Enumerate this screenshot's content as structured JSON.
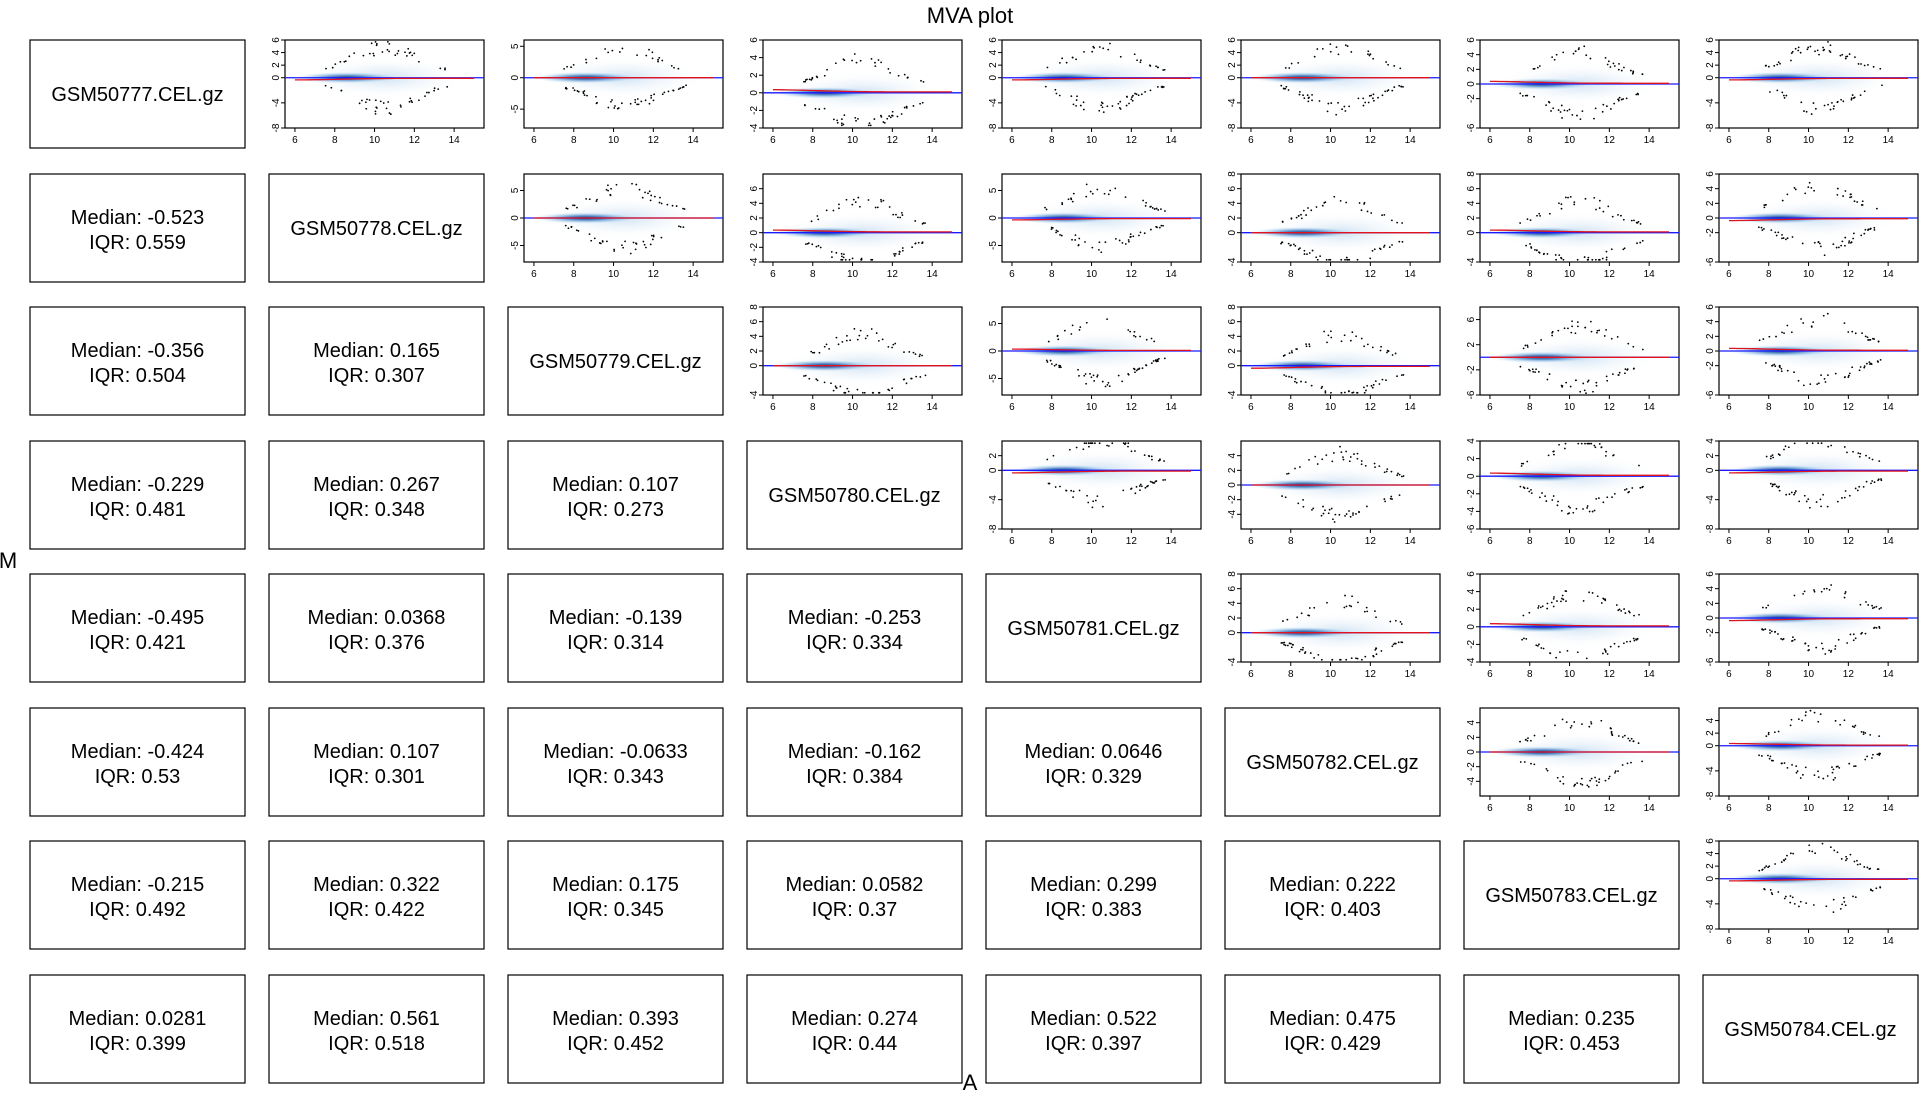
{
  "chart_data": {
    "type": "scatter",
    "title": "MVA plot",
    "xlabel": "A",
    "ylabel": "M",
    "samples": [
      "GSM50777.CEL.gz",
      "GSM50778.CEL.gz",
      "GSM50779.CEL.gz",
      "GSM50780.CEL.gz",
      "GSM50781.CEL.gz",
      "GSM50782.CEL.gz",
      "GSM50783.CEL.gz",
      "GSM50784.CEL.gz"
    ],
    "stats": [
      [
        null,
        null,
        null,
        null,
        null,
        null,
        null,
        null
      ],
      [
        {
          "median": "Median: -0.523",
          "iqr": "IQR: 0.559"
        },
        null,
        null,
        null,
        null,
        null,
        null,
        null
      ],
      [
        {
          "median": "Median: -0.356",
          "iqr": "IQR: 0.504"
        },
        {
          "median": "Median: 0.165",
          "iqr": "IQR: 0.307"
        },
        null,
        null,
        null,
        null,
        null,
        null
      ],
      [
        {
          "median": "Median: -0.229",
          "iqr": "IQR: 0.481"
        },
        {
          "median": "Median: 0.267",
          "iqr": "IQR: 0.348"
        },
        {
          "median": "Median: 0.107",
          "iqr": "IQR: 0.273"
        },
        null,
        null,
        null,
        null,
        null
      ],
      [
        {
          "median": "Median: -0.495",
          "iqr": "IQR: 0.421"
        },
        {
          "median": "Median: 0.0368",
          "iqr": "IQR: 0.376"
        },
        {
          "median": "Median: -0.139",
          "iqr": "IQR: 0.314"
        },
        {
          "median": "Median: -0.253",
          "iqr": "IQR: 0.334"
        },
        null,
        null,
        null,
        null
      ],
      [
        {
          "median": "Median: -0.424",
          "iqr": "IQR: 0.53"
        },
        {
          "median": "Median: 0.107",
          "iqr": "IQR: 0.301"
        },
        {
          "median": "Median: -0.0633",
          "iqr": "IQR: 0.343"
        },
        {
          "median": "Median: -0.162",
          "iqr": "IQR: 0.384"
        },
        {
          "median": "Median: 0.0646",
          "iqr": "IQR: 0.329"
        },
        null,
        null,
        null
      ],
      [
        {
          "median": "Median: -0.215",
          "iqr": "IQR: 0.492"
        },
        {
          "median": "Median: 0.322",
          "iqr": "IQR: 0.422"
        },
        {
          "median": "Median: 0.175",
          "iqr": "IQR: 0.345"
        },
        {
          "median": "Median: 0.0582",
          "iqr": "IQR: 0.37"
        },
        {
          "median": "Median: 0.299",
          "iqr": "IQR: 0.383"
        },
        {
          "median": "Median: 0.222",
          "iqr": "IQR: 0.403"
        },
        null,
        null
      ],
      [
        {
          "median": "Median: 0.0281",
          "iqr": "IQR: 0.399"
        },
        {
          "median": "Median: 0.561",
          "iqr": "IQR: 0.518"
        },
        {
          "median": "Median: 0.393",
          "iqr": "IQR: 0.452"
        },
        {
          "median": "Median: 0.274",
          "iqr": "IQR: 0.44"
        },
        {
          "median": "Median: 0.522",
          "iqr": "IQR: 0.397"
        },
        {
          "median": "Median: 0.475",
          "iqr": "IQR: 0.429"
        },
        {
          "median": "Median: 0.235",
          "iqr": "IQR: 0.453"
        },
        null
      ]
    ],
    "x_ticks": [
      "6",
      "8",
      "10",
      "12",
      "14"
    ],
    "xlim": [
      5.5,
      15.5
    ],
    "panels": [
      {
        "row": 0,
        "col": 1,
        "ylim": [
          -8,
          6
        ],
        "y_ticks": [
          "-8",
          "-4",
          "0",
          "2",
          "4",
          "6"
        ]
      },
      {
        "row": 0,
        "col": 2,
        "ylim": [
          -8,
          6
        ],
        "y_ticks": [
          "-5",
          "0",
          "5"
        ]
      },
      {
        "row": 0,
        "col": 3,
        "ylim": [
          -4,
          6
        ],
        "y_ticks": [
          "-4",
          "-2",
          "0",
          "2",
          "4",
          "6"
        ]
      },
      {
        "row": 0,
        "col": 4,
        "ylim": [
          -8,
          6
        ],
        "y_ticks": [
          "-8",
          "-4",
          "0",
          "2",
          "4",
          "6"
        ]
      },
      {
        "row": 0,
        "col": 5,
        "ylim": [
          -8,
          6
        ],
        "y_ticks": [
          "-8",
          "-4",
          "0",
          "2",
          "4",
          "6"
        ]
      },
      {
        "row": 0,
        "col": 6,
        "ylim": [
          -6,
          6
        ],
        "y_ticks": [
          "-6",
          "-2",
          "0",
          "2",
          "4",
          "6"
        ]
      },
      {
        "row": 0,
        "col": 7,
        "ylim": [
          -8,
          6
        ],
        "y_ticks": [
          "-8",
          "-4",
          "0",
          "2",
          "4",
          "6"
        ]
      },
      {
        "row": 1,
        "col": 2,
        "ylim": [
          -8,
          8
        ],
        "y_ticks": [
          "-5",
          "0",
          "5"
        ]
      },
      {
        "row": 1,
        "col": 3,
        "ylim": [
          -4,
          8
        ],
        "y_ticks": [
          "-4",
          "-2",
          "0",
          "2",
          "4",
          "6"
        ]
      },
      {
        "row": 1,
        "col": 4,
        "ylim": [
          -8,
          8
        ],
        "y_ticks": [
          "-5",
          "0",
          "5"
        ]
      },
      {
        "row": 1,
        "col": 5,
        "ylim": [
          -4,
          8
        ],
        "y_ticks": [
          "-4",
          "0",
          "2",
          "4",
          "6",
          "8"
        ]
      },
      {
        "row": 1,
        "col": 6,
        "ylim": [
          -4,
          8
        ],
        "y_ticks": [
          "-4",
          "0",
          "2",
          "4",
          "6",
          "8"
        ]
      },
      {
        "row": 1,
        "col": 7,
        "ylim": [
          -6,
          6
        ],
        "y_ticks": [
          "-6",
          "-2",
          "0",
          "2",
          "4",
          "6"
        ]
      },
      {
        "row": 2,
        "col": 3,
        "ylim": [
          -4,
          8
        ],
        "y_ticks": [
          "-4",
          "0",
          "2",
          "4",
          "6",
          "8"
        ]
      },
      {
        "row": 2,
        "col": 4,
        "ylim": [
          -8,
          8
        ],
        "y_ticks": [
          "-5",
          "0",
          "5"
        ]
      },
      {
        "row": 2,
        "col": 5,
        "ylim": [
          -4,
          8
        ],
        "y_ticks": [
          "-4",
          "0",
          "2",
          "4",
          "6",
          "8"
        ]
      },
      {
        "row": 2,
        "col": 6,
        "ylim": [
          -6,
          8
        ],
        "y_ticks": [
          "-6",
          "-2",
          "2",
          "6"
        ]
      },
      {
        "row": 2,
        "col": 7,
        "ylim": [
          -6,
          6
        ],
        "y_ticks": [
          "-6",
          "-2",
          "0",
          "2",
          "4",
          "6"
        ]
      },
      {
        "row": 3,
        "col": 4,
        "ylim": [
          -8,
          4
        ],
        "y_ticks": [
          "-8",
          "-4",
          "0",
          "2"
        ]
      },
      {
        "row": 3,
        "col": 5,
        "ylim": [
          -6,
          6
        ],
        "y_ticks": [
          "-4",
          "-2",
          "0",
          "2",
          "4"
        ]
      },
      {
        "row": 3,
        "col": 6,
        "ylim": [
          -6,
          4
        ],
        "y_ticks": [
          "-6",
          "-4",
          "-2",
          "0",
          "2",
          "4"
        ]
      },
      {
        "row": 3,
        "col": 7,
        "ylim": [
          -8,
          4
        ],
        "y_ticks": [
          "-8",
          "-4",
          "0",
          "2",
          "4"
        ]
      },
      {
        "row": 4,
        "col": 5,
        "ylim": [
          -4,
          8
        ],
        "y_ticks": [
          "-4",
          "0",
          "2",
          "4",
          "6",
          "8"
        ]
      },
      {
        "row": 4,
        "col": 6,
        "ylim": [
          -4,
          6
        ],
        "y_ticks": [
          "-4",
          "-2",
          "0",
          "2",
          "4",
          "6"
        ]
      },
      {
        "row": 4,
        "col": 7,
        "ylim": [
          -6,
          6
        ],
        "y_ticks": [
          "-6",
          "-2",
          "0",
          "2",
          "4",
          "6"
        ]
      },
      {
        "row": 5,
        "col": 6,
        "ylim": [
          -6,
          6
        ],
        "y_ticks": [
          "-4",
          "-2",
          "0",
          "2",
          "4"
        ]
      },
      {
        "row": 5,
        "col": 7,
        "ylim": [
          -8,
          6
        ],
        "y_ticks": [
          "-8",
          "-4",
          "0",
          "2",
          "4"
        ]
      },
      {
        "row": 6,
        "col": 7,
        "ylim": [
          -8,
          6
        ],
        "y_ticks": [
          "-8",
          "-4",
          "0",
          "2",
          "4",
          "6"
        ]
      }
    ],
    "colors": {
      "density": "#1a5fb4",
      "loess": "#e0141e",
      "zero_line": "#1a1aff",
      "points": "#000000",
      "box": "#000000"
    }
  }
}
